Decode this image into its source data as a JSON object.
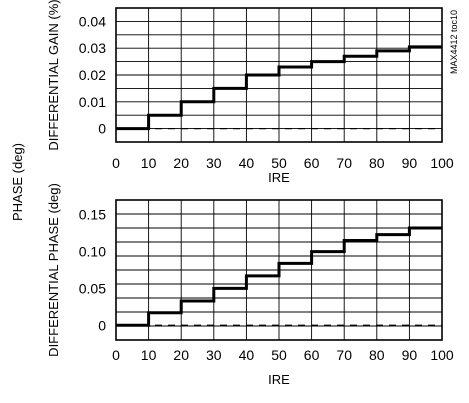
{
  "figure_code": "MAX4412 toc10",
  "side_label": "PHASE (deg)",
  "chart_data": [
    {
      "type": "line",
      "step": true,
      "ylabel": "DIFFERENTIAL GAIN (%)",
      "xlabel": "IRE",
      "xlim": [
        0,
        100
      ],
      "ylim": [
        -0.005,
        0.045
      ],
      "x_ticks": [
        "0",
        "10",
        "20",
        "30",
        "40",
        "50",
        "60",
        "70",
        "80",
        "90",
        "100"
      ],
      "y_ticks": [
        "0",
        "0.01",
        "0.02",
        "0.03",
        "0.04"
      ],
      "y_tick_values": [
        0,
        0.01,
        0.02,
        0.03,
        0.04
      ],
      "x": [
        0,
        10,
        20,
        30,
        40,
        50,
        60,
        70,
        80,
        90,
        100
      ],
      "series": [
        {
          "values": [
            0,
            0.005,
            0.01,
            0.015,
            0.02,
            0.023,
            0.025,
            0.027,
            0.029,
            0.0305,
            0.0305
          ]
        }
      ],
      "reference_line": 0,
      "grid": true
    },
    {
      "type": "line",
      "step": true,
      "ylabel": "DIFFERENTIAL PHASE (deg)",
      "xlabel": "IRE",
      "xlim": [
        0,
        100
      ],
      "ylim": [
        -0.02,
        0.17
      ],
      "x_ticks": [
        "0",
        "10",
        "20",
        "30",
        "40",
        "50",
        "60",
        "70",
        "80",
        "90",
        "100"
      ],
      "y_ticks": [
        "0",
        "0.05",
        "0.10",
        "0.15"
      ],
      "y_tick_values": [
        0,
        0.05,
        0.1,
        0.15
      ],
      "x": [
        0,
        10,
        20,
        30,
        40,
        50,
        60,
        70,
        80,
        90,
        100
      ],
      "series": [
        {
          "values": [
            0,
            0.017,
            0.033,
            0.05,
            0.067,
            0.084,
            0.1,
            0.115,
            0.123,
            0.132,
            0.132
          ]
        }
      ],
      "reference_line": 0,
      "grid": true
    }
  ]
}
